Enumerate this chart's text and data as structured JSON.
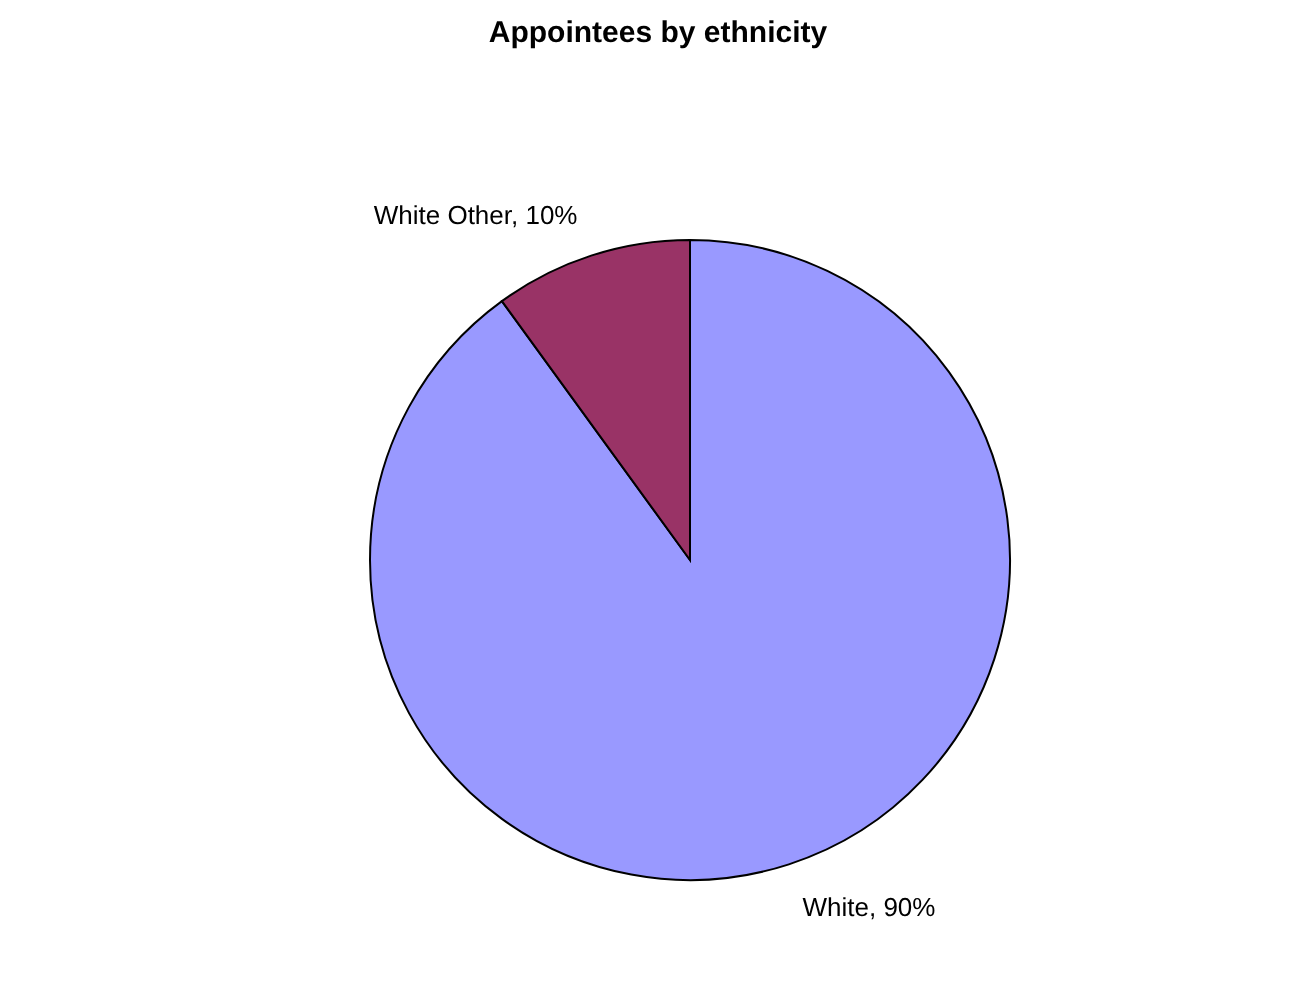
{
  "chart_data": {
    "type": "pie",
    "title": "Appointees by ethnicity",
    "categories": [
      "White",
      "White Other"
    ],
    "values": [
      90,
      10
    ],
    "colors": [
      "#9999ff",
      "#993366"
    ],
    "value_labels": [
      ", 90%",
      ", 10%"
    ]
  }
}
